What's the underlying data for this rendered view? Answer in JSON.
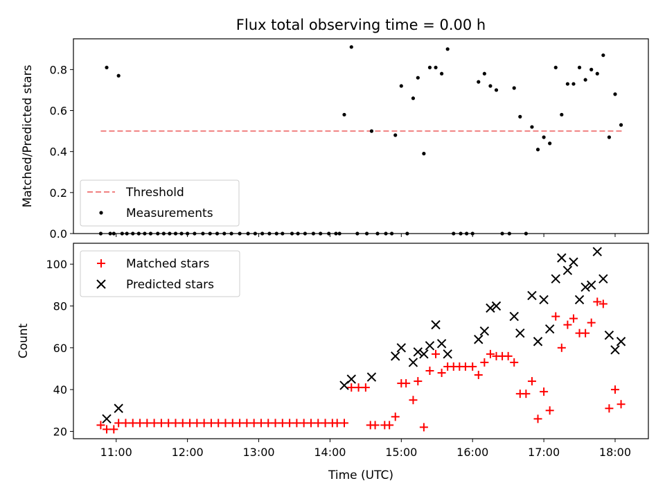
{
  "chart_data": [
    {
      "type": "scatter",
      "title": "Flux total observing time = 0.00 h",
      "ylabel": "Matched/Predicted stars",
      "xlim": [
        "10:24",
        "18:28"
      ],
      "ylim": [
        0,
        0.95
      ],
      "y_ticks": [
        "0.0",
        "0.2",
        "0.4",
        "0.6",
        "0.8"
      ],
      "legend_position": "lower-left",
      "threshold": {
        "name": "Threshold",
        "value": 0.5,
        "x_range": [
          "10:47",
          "18:07"
        ],
        "color": "#f08080"
      },
      "series": [
        {
          "name": "Measurements",
          "color": "#000000",
          "points": [
            [
              "10:47",
              0.0
            ],
            [
              "10:52",
              0.81
            ],
            [
              "10:55",
              0.0
            ],
            [
              "10:58",
              0.0
            ],
            [
              "11:02",
              0.77
            ],
            [
              "11:05",
              0.0
            ],
            [
              "11:09",
              0.0
            ],
            [
              "11:14",
              0.0
            ],
            [
              "11:19",
              0.0
            ],
            [
              "11:24",
              0.0
            ],
            [
              "11:29",
              0.0
            ],
            [
              "11:35",
              0.0
            ],
            [
              "11:40",
              0.0
            ],
            [
              "11:45",
              0.0
            ],
            [
              "11:50",
              0.0
            ],
            [
              "11:55",
              0.0
            ],
            [
              "12:00",
              0.0
            ],
            [
              "12:06",
              0.0
            ],
            [
              "12:13",
              0.0
            ],
            [
              "12:19",
              0.0
            ],
            [
              "12:25",
              0.0
            ],
            [
              "12:31",
              0.0
            ],
            [
              "12:37",
              0.0
            ],
            [
              "12:44",
              0.0
            ],
            [
              "12:51",
              0.0
            ],
            [
              "12:57",
              0.0
            ],
            [
              "13:03",
              0.0
            ],
            [
              "13:09",
              0.0
            ],
            [
              "13:15",
              0.0
            ],
            [
              "13:20",
              0.0
            ],
            [
              "13:28",
              0.0
            ],
            [
              "13:33",
              0.0
            ],
            [
              "13:39",
              0.0
            ],
            [
              "13:46",
              0.0
            ],
            [
              "13:52",
              0.0
            ],
            [
              "13:59",
              0.0
            ],
            [
              "14:05",
              0.0
            ],
            [
              "14:08",
              0.0
            ],
            [
              "14:12",
              0.58
            ],
            [
              "14:18",
              0.91
            ],
            [
              "14:23",
              0.0
            ],
            [
              "14:31",
              0.0
            ],
            [
              "14:35",
              0.5
            ],
            [
              "14:40",
              0.0
            ],
            [
              "14:47",
              0.0
            ],
            [
              "14:52",
              0.0
            ],
            [
              "14:55",
              0.48
            ],
            [
              "15:00",
              0.72
            ],
            [
              "15:05",
              0.0
            ],
            [
              "15:10",
              0.66
            ],
            [
              "15:14",
              0.76
            ],
            [
              "15:19",
              0.39
            ],
            [
              "15:24",
              0.81
            ],
            [
              "15:29",
              0.81
            ],
            [
              "15:34",
              0.78
            ],
            [
              "15:39",
              0.9
            ],
            [
              "15:44",
              0.0
            ],
            [
              "15:50",
              0.0
            ],
            [
              "15:55",
              0.0
            ],
            [
              "16:00",
              0.0
            ],
            [
              "16:05",
              0.74
            ],
            [
              "16:10",
              0.78
            ],
            [
              "16:15",
              0.72
            ],
            [
              "16:20",
              0.7
            ],
            [
              "16:25",
              0.0
            ],
            [
              "16:31",
              0.0
            ],
            [
              "16:35",
              0.71
            ],
            [
              "16:40",
              0.57
            ],
            [
              "16:45",
              0.0
            ],
            [
              "16:50",
              0.52
            ],
            [
              "16:55",
              0.41
            ],
            [
              "17:00",
              0.47
            ],
            [
              "17:05",
              0.44
            ],
            [
              "17:10",
              0.81
            ],
            [
              "17:15",
              0.58
            ],
            [
              "17:20",
              0.73
            ],
            [
              "17:25",
              0.73
            ],
            [
              "17:30",
              0.81
            ],
            [
              "17:35",
              0.75
            ],
            [
              "17:40",
              0.8
            ],
            [
              "17:45",
              0.78
            ],
            [
              "17:50",
              0.87
            ],
            [
              "17:55",
              0.47
            ],
            [
              "18:00",
              0.68
            ],
            [
              "18:05",
              0.53
            ]
          ]
        }
      ]
    },
    {
      "type": "scatter",
      "xlabel": "Time (UTC)",
      "ylabel": "Count",
      "xlim": [
        "10:24",
        "18:28"
      ],
      "ylim": [
        16.5,
        110
      ],
      "x_ticks": [
        "11:00",
        "12:00",
        "13:00",
        "14:00",
        "15:00",
        "16:00",
        "17:00",
        "18:00"
      ],
      "y_ticks": [
        "20",
        "40",
        "60",
        "80",
        "100"
      ],
      "legend_position": "upper-left",
      "series": [
        {
          "name": "Matched stars",
          "marker": "plus",
          "color": "#ff0000",
          "points": [
            [
              "10:47",
              23
            ],
            [
              "10:52",
              21
            ],
            [
              "10:58",
              21
            ],
            [
              "11:02",
              24
            ],
            [
              "11:08",
              24
            ],
            [
              "11:14",
              24
            ],
            [
              "11:20",
              24
            ],
            [
              "11:26",
              24
            ],
            [
              "11:32",
              24
            ],
            [
              "11:38",
              24
            ],
            [
              "11:44",
              24
            ],
            [
              "11:50",
              24
            ],
            [
              "11:56",
              24
            ],
            [
              "12:02",
              24
            ],
            [
              "12:08",
              24
            ],
            [
              "12:14",
              24
            ],
            [
              "12:20",
              24
            ],
            [
              "12:26",
              24
            ],
            [
              "12:32",
              24
            ],
            [
              "12:38",
              24
            ],
            [
              "12:44",
              24
            ],
            [
              "12:50",
              24
            ],
            [
              "12:56",
              24
            ],
            [
              "13:02",
              24
            ],
            [
              "13:08",
              24
            ],
            [
              "13:14",
              24
            ],
            [
              "13:20",
              24
            ],
            [
              "13:26",
              24
            ],
            [
              "13:32",
              24
            ],
            [
              "13:38",
              24
            ],
            [
              "13:44",
              24
            ],
            [
              "13:50",
              24
            ],
            [
              "13:56",
              24
            ],
            [
              "14:02",
              24
            ],
            [
              "14:06",
              24
            ],
            [
              "14:12",
              24
            ],
            [
              "14:18",
              41
            ],
            [
              "14:24",
              41
            ],
            [
              "14:30",
              41
            ],
            [
              "14:34",
              23
            ],
            [
              "14:38",
              23
            ],
            [
              "14:46",
              23
            ],
            [
              "14:50",
              23
            ],
            [
              "14:55",
              27
            ],
            [
              "15:00",
              43
            ],
            [
              "15:04",
              43
            ],
            [
              "15:10",
              35
            ],
            [
              "15:14",
              44
            ],
            [
              "15:19",
              22
            ],
            [
              "15:24",
              49
            ],
            [
              "15:29",
              57
            ],
            [
              "15:34",
              48
            ],
            [
              "15:39",
              51
            ],
            [
              "15:44",
              51
            ],
            [
              "15:49",
              51
            ],
            [
              "15:54",
              51
            ],
            [
              "16:00",
              51
            ],
            [
              "16:05",
              47
            ],
            [
              "16:10",
              53
            ],
            [
              "16:15",
              57
            ],
            [
              "16:20",
              56
            ],
            [
              "16:25",
              56
            ],
            [
              "16:30",
              56
            ],
            [
              "16:35",
              53
            ],
            [
              "16:40",
              38
            ],
            [
              "16:45",
              38
            ],
            [
              "16:50",
              44
            ],
            [
              "16:55",
              26
            ],
            [
              "17:00",
              39
            ],
            [
              "17:05",
              30
            ],
            [
              "17:10",
              75
            ],
            [
              "17:15",
              60
            ],
            [
              "17:20",
              71
            ],
            [
              "17:25",
              74
            ],
            [
              "17:30",
              67
            ],
            [
              "17:35",
              67
            ],
            [
              "17:40",
              72
            ],
            [
              "17:45",
              82
            ],
            [
              "17:50",
              81
            ],
            [
              "17:55",
              31
            ],
            [
              "18:00",
              40
            ],
            [
              "18:05",
              33
            ]
          ]
        },
        {
          "name": "Predicted stars",
          "marker": "x",
          "color": "#000000",
          "points": [
            [
              "10:52",
              26
            ],
            [
              "11:02",
              31
            ],
            [
              "14:12",
              42
            ],
            [
              "14:18",
              45
            ],
            [
              "14:35",
              46
            ],
            [
              "14:55",
              56
            ],
            [
              "15:00",
              60
            ],
            [
              "15:10",
              53
            ],
            [
              "15:14",
              58
            ],
            [
              "15:19",
              57
            ],
            [
              "15:24",
              61
            ],
            [
              "15:29",
              71
            ],
            [
              "15:34",
              62
            ],
            [
              "15:39",
              57
            ],
            [
              "16:05",
              64
            ],
            [
              "16:10",
              68
            ],
            [
              "16:15",
              79
            ],
            [
              "16:20",
              80
            ],
            [
              "16:35",
              75
            ],
            [
              "16:40",
              67
            ],
            [
              "16:50",
              85
            ],
            [
              "16:55",
              63
            ],
            [
              "17:00",
              83
            ],
            [
              "17:05",
              69
            ],
            [
              "17:10",
              93
            ],
            [
              "17:15",
              103
            ],
            [
              "17:20",
              97
            ],
            [
              "17:25",
              101
            ],
            [
              "17:30",
              83
            ],
            [
              "17:35",
              89
            ],
            [
              "17:40",
              90
            ],
            [
              "17:45",
              106
            ],
            [
              "17:50",
              93
            ],
            [
              "17:55",
              66
            ],
            [
              "18:00",
              59
            ],
            [
              "18:05",
              63
            ]
          ]
        }
      ]
    }
  ]
}
